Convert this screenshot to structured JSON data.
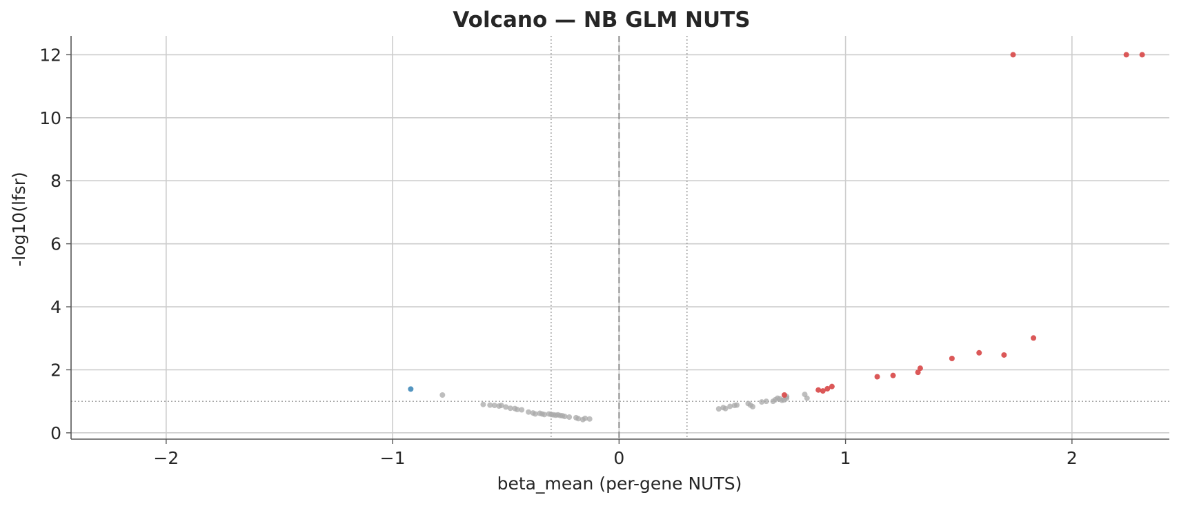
{
  "chart_data": {
    "type": "scatter",
    "title": "Volcano — NB GLM NUTS",
    "xlabel": "beta_mean (per-gene NUTS)",
    "ylabel": "-log10(lfsr)",
    "xlim": [
      -2.42,
      2.43
    ],
    "ylim": [
      -0.2,
      12.6
    ],
    "xticks": [
      -2,
      -1,
      0,
      1,
      2
    ],
    "xtick_labels": [
      "−2",
      "−1",
      "0",
      "1",
      "2"
    ],
    "yticks": [
      0,
      2,
      4,
      6,
      8,
      10,
      12
    ],
    "ytick_labels": [
      "0",
      "2",
      "4",
      "6",
      "8",
      "10",
      "12"
    ],
    "grid": true,
    "reference_lines": {
      "vertical_dashed": 0,
      "vertical_dotted": [
        -0.3,
        0.3
      ],
      "horizontal_dotted": 1
    },
    "colors": {
      "up": "#d94f4f",
      "down": "#4a8fbd",
      "ns": "#a8a8a8"
    },
    "series": [
      {
        "group": "up",
        "x": [
          1.74,
          2.24,
          2.31,
          1.83,
          1.59,
          1.7,
          1.47,
          1.33,
          1.32,
          1.21,
          1.14,
          0.94,
          0.92,
          0.9,
          0.88,
          0.73
        ],
        "y": [
          12.0,
          12.0,
          12.0,
          3.01,
          2.54,
          2.47,
          2.36,
          2.05,
          1.92,
          1.82,
          1.78,
          1.47,
          1.4,
          1.33,
          1.36,
          1.2
        ]
      },
      {
        "group": "down",
        "x": [
          -0.92
        ],
        "y": [
          1.39
        ]
      },
      {
        "group": "ns",
        "x": [
          -0.78,
          -0.6,
          -0.57,
          -0.55,
          -0.53,
          -0.52,
          -0.5,
          -0.48,
          -0.46,
          -0.45,
          -0.43,
          -0.4,
          -0.38,
          -0.37,
          -0.35,
          -0.34,
          -0.33,
          -0.31,
          -0.3,
          -0.29,
          -0.28,
          -0.27,
          -0.26,
          -0.25,
          -0.24,
          -0.22,
          -0.19,
          -0.18,
          -0.16,
          -0.15,
          -0.13,
          0.44,
          0.46,
          0.47,
          0.49,
          0.51,
          0.52,
          0.57,
          0.58,
          0.59,
          0.63,
          0.65,
          0.68,
          0.69,
          0.7,
          0.71,
          0.72,
          0.73,
          0.74,
          0.74,
          0.82,
          0.83
        ],
        "y": [
          1.2,
          0.9,
          0.88,
          0.87,
          0.85,
          0.87,
          0.82,
          0.78,
          0.77,
          0.74,
          0.73,
          0.66,
          0.63,
          0.6,
          0.62,
          0.6,
          0.58,
          0.6,
          0.58,
          0.57,
          0.56,
          0.57,
          0.55,
          0.54,
          0.52,
          0.5,
          0.48,
          0.45,
          0.42,
          0.46,
          0.44,
          0.76,
          0.8,
          0.77,
          0.84,
          0.87,
          0.88,
          0.93,
          0.88,
          0.83,
          0.98,
          1.0,
          1.0,
          1.05,
          1.1,
          1.08,
          1.03,
          1.05,
          1.1,
          1.15,
          1.22,
          1.1
        ]
      }
    ]
  }
}
